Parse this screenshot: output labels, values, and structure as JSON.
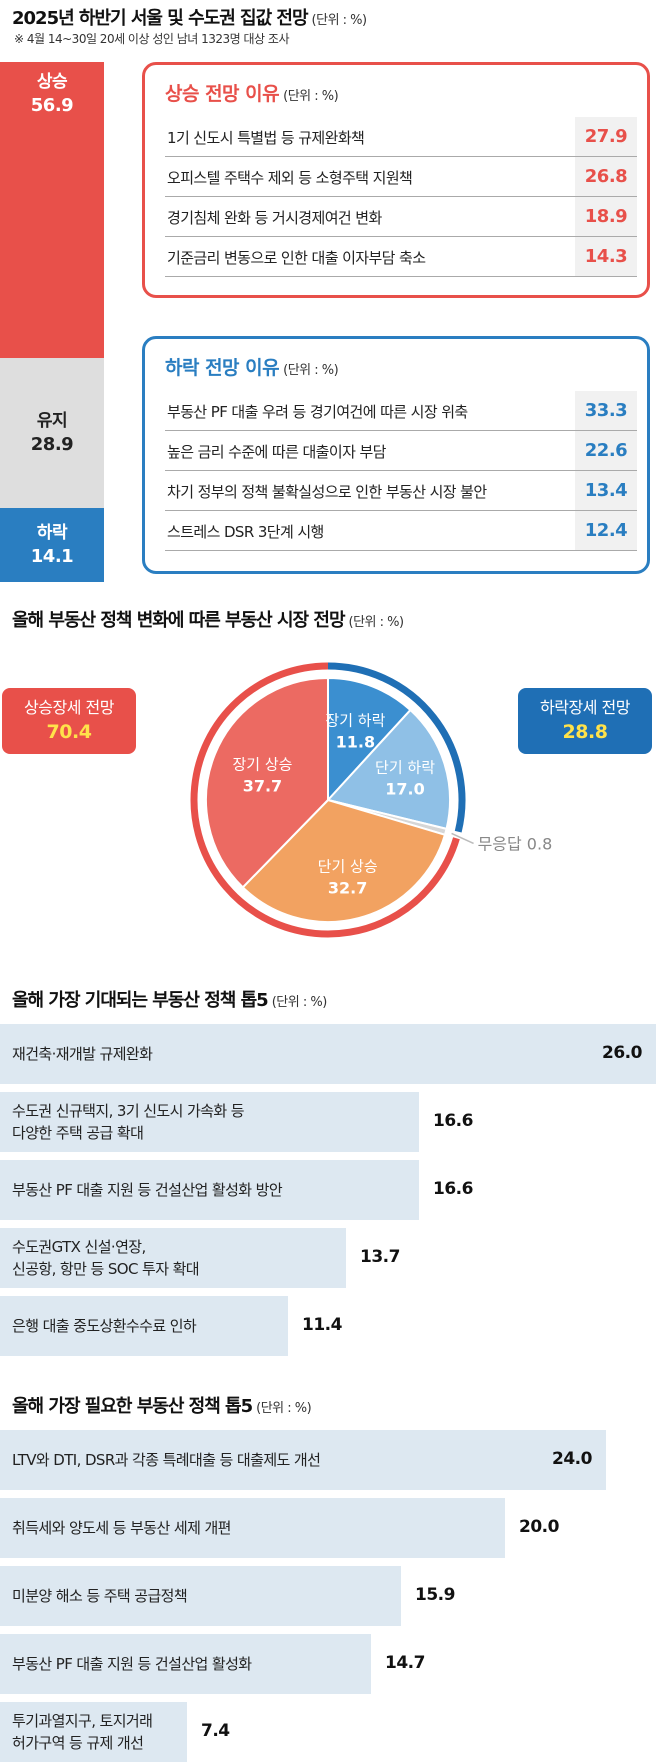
{
  "chart_data": [
    {
      "type": "bar",
      "title": "2025년 하반기 서울 및 수도권 집값 전망",
      "unit": "(단위 : %)",
      "note": "※ 4월 14~30일 20세 이상 성인 남녀 1323명 대상  조사",
      "categories": [
        "상승",
        "유지",
        "하락"
      ],
      "values": [
        56.9,
        28.9,
        14.1
      ],
      "colors": [
        "#e8504a",
        "#dedede",
        "#2a7ec1"
      ]
    },
    {
      "type": "table",
      "title": "상승 전망 이유",
      "unit": "(단위 : %)",
      "rows": [
        {
          "label": "1기 신도시 특별법 등 규제완화책",
          "value": 27.9
        },
        {
          "label": "오피스텔 주택수 제외 등 소형주택 지원책",
          "value": 26.8
        },
        {
          "label": "경기침체 완화 등 거시경제여건 변화",
          "value": 18.9
        },
        {
          "label": "기준금리 변동으로 인한 대출 이자부담 축소",
          "value": 14.3
        }
      ]
    },
    {
      "type": "table",
      "title": "하락 전망 이유",
      "unit": "(단위 : %)",
      "rows": [
        {
          "label": "부동산 PF 대출 우려 등 경기여건에 따른 시장 위축",
          "value": 33.3
        },
        {
          "label": "높은 금리 수준에 따른 대출이자 부담",
          "value": 22.6
        },
        {
          "label": "차기 정부의 정책 불확실성으로 인한 부동산 시장 불안",
          "value": 13.4
        },
        {
          "label": "스트레스 DSR 3단계 시행",
          "value": 12.4
        }
      ]
    },
    {
      "type": "pie",
      "title": "올해 부동산 정책 변화에 따른 부동산 시장 전망",
      "unit": "(단위 : %)",
      "slices": [
        {
          "label": "장기 하락",
          "value": 11.8,
          "color": "#3b8fd0"
        },
        {
          "label": "단기 하락",
          "value": 17.0,
          "color": "#8fc0e6"
        },
        {
          "label": "무응답",
          "value": 0.8,
          "color": "#d6d6d6"
        },
        {
          "label": "단기 상승",
          "value": 32.7,
          "color": "#f2a261"
        },
        {
          "label": "장기 상승",
          "value": 37.7,
          "color": "#ec6a62"
        }
      ],
      "groups": [
        {
          "label": "상승장세 전망",
          "value": 70.4,
          "color": "#e8504a"
        },
        {
          "label": "하락장세 전망",
          "value": 28.8,
          "color": "#1f6fb5"
        }
      ]
    },
    {
      "type": "bar",
      "orientation": "horizontal",
      "title": "올해 가장 기대되는 부동산 정책 톱5",
      "unit": "(단위 : %)",
      "categories": [
        [
          "재건축·재개발 규제완화"
        ],
        [
          "수도권 신규택지, 3기 신도시 가속화 등",
          "다양한 주택 공급 확대"
        ],
        [
          "부동산 PF 대출 지원 등 건설산업 활성화 방안"
        ],
        [
          "수도권GTX 신설·연장,",
          "신공항, 항만 등 SOC 투자 확대"
        ],
        [
          "은행 대출 중도상환수수료 인하"
        ]
      ],
      "values": [
        26.0,
        16.6,
        16.6,
        13.7,
        11.4
      ],
      "xlim": [
        0,
        26.0
      ]
    },
    {
      "type": "bar",
      "orientation": "horizontal",
      "title": "올해 가장 필요한 부동산 정책 톱5",
      "unit": "(단위 : %)",
      "categories": [
        [
          "LTV와 DTI, DSR과 각종 특례대출 등 대출제도 개선"
        ],
        [
          "취득세와 양도세 등 부동산 세제 개편"
        ],
        [
          "미분양 해소 등 주택 공급정책"
        ],
        [
          "부동산 PF 대출 지원 등 건설산업 활성화"
        ],
        [
          "투기과열지구, 토지거래",
          "허가구역 등 규제 개선"
        ]
      ],
      "values": [
        24.0,
        20.0,
        15.9,
        14.7,
        7.4
      ],
      "xlim": [
        0,
        26.0
      ]
    }
  ]
}
